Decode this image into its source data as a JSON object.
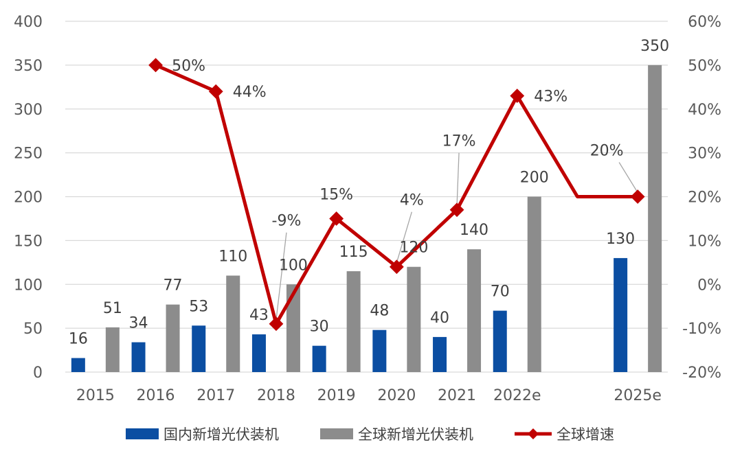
{
  "chart_data": {
    "type": "bar",
    "categories": [
      "2015",
      "2016",
      "2017",
      "2018",
      "2019",
      "2020",
      "2021",
      "2022e",
      "",
      "2025e"
    ],
    "series": [
      {
        "name": "国内新增光伏装机",
        "type": "bar",
        "axis": "left",
        "color": "#0B4EA2",
        "values": [
          16,
          34,
          53,
          43,
          30,
          48,
          40,
          70,
          null,
          130
        ]
      },
      {
        "name": "全球新增光伏装机",
        "type": "bar",
        "axis": "left",
        "color": "#8C8C8C",
        "values": [
          51,
          77,
          110,
          100,
          115,
          120,
          140,
          200,
          null,
          350
        ]
      },
      {
        "name": "全球增速",
        "type": "line",
        "axis": "right",
        "color": "#C00000",
        "values": [
          null,
          50,
          44,
          -9,
          15,
          4,
          17,
          43,
          20,
          20
        ],
        "labels": [
          "",
          "50%",
          "44%",
          "-9%",
          "15%",
          "4%",
          "17%",
          "43%",
          "",
          "20%"
        ]
      }
    ],
    "y_left": {
      "min": 0,
      "max": 400,
      "step": 50,
      "ticks": [
        "0",
        "50",
        "100",
        "150",
        "200",
        "250",
        "300",
        "350",
        "400"
      ]
    },
    "y_right": {
      "min": -20,
      "max": 60,
      "step": 10,
      "ticks": [
        "-20%",
        "-10%",
        "0%",
        "10%",
        "20%",
        "30%",
        "40%",
        "50%",
        "60%"
      ]
    },
    "grid": true,
    "legend_position": "bottom"
  }
}
